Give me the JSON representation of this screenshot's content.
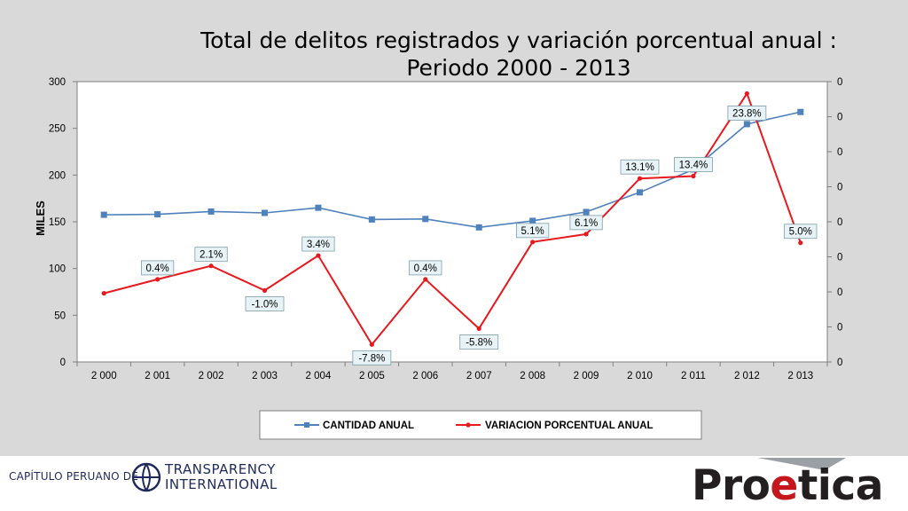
{
  "slide": {
    "title_line1": "Total de delitos registrados y variación porcentual anual :",
    "title_line2": "Periodo 2000 - 2013"
  },
  "chart_data": {
    "type": "line",
    "title": "Total de delitos registrados y variación porcentual anual : Periodo 2000 - 2013",
    "ylabel": "MILES",
    "categories": [
      "2 000",
      "2 001",
      "2 002",
      "2 003",
      "2 004",
      "2 005",
      "2 006",
      "2 007",
      "2 008",
      "2 009",
      "2 010",
      "2 011",
      "2 012",
      "2 013"
    ],
    "ylim": [
      0,
      300
    ],
    "y_ticks": [
      "0",
      "50",
      "100",
      "150",
      "200",
      "250",
      "300"
    ],
    "y2_ticks": [
      "0",
      "0",
      "0",
      "0",
      "0",
      "0",
      "0",
      "0",
      "0"
    ],
    "series": [
      {
        "name": "CANTIDAD ANUAL",
        "axis": "left",
        "color": "#4f81bd",
        "marker": "square",
        "values": [
          157.5,
          158,
          161,
          159.5,
          165,
          152.5,
          153,
          144,
          151,
          160.5,
          181.5,
          206,
          254.5,
          267.5
        ]
      },
      {
        "name": "VARIACION PORCENTUAL ANUAL",
        "axis": "right",
        "color": "#e8191e",
        "marker": "circle",
        "values": [
          -1.35,
          0.4,
          2.1,
          -1.0,
          3.4,
          -7.8,
          0.4,
          -5.8,
          5.1,
          6.1,
          13.1,
          13.4,
          23.8,
          5.0
        ],
        "labels": [
          "",
          "0.4%",
          "2.1%",
          "-1.0%",
          "3.4%",
          "-7.8%",
          "0.4%",
          "-5.8%",
          "5.1%",
          "6.1%",
          "13.1%",
          "13.4%",
          "23.8%",
          "5.0%"
        ]
      }
    ],
    "legend_position": "bottom",
    "grid": false
  },
  "footer": {
    "capitulo": "CAPÍTULO PERUANO DE",
    "ti_line1": "TRANSPARENCY",
    "ti_line2": "INTERNATIONAL",
    "brand_pre": "Pro",
    "brand_e": "e",
    "brand_post": "tica"
  },
  "colors": {
    "background": "#d9d9d9",
    "brand_red": "#c4161c",
    "ti_blue": "#1f2a5c"
  }
}
